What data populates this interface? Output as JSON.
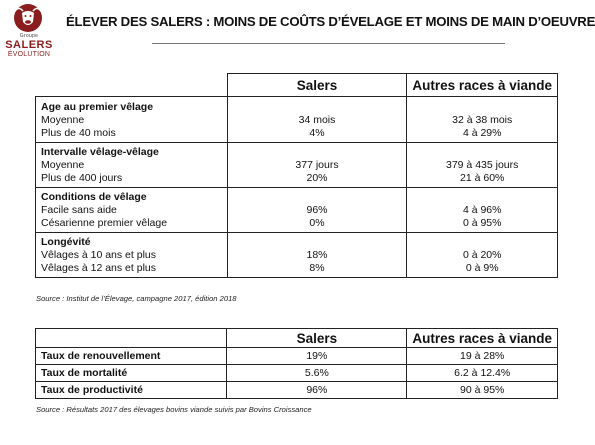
{
  "logo": {
    "top_text": "Groupe",
    "brand": "SALERS",
    "sub": "ÉVOLUTION"
  },
  "title": "ÉLEVER DES SALERS : MOINS DE COÛTS D’ÉVELAGE ET MOINS DE MAIN D’OEUVRE",
  "table1": {
    "headers": [
      "",
      "Salers",
      "Autres races à viande"
    ],
    "groups": [
      {
        "label": "Age au premier vêlage",
        "rows": [
          {
            "label": "Moyenne",
            "salers": "34 mois",
            "autres": "32 à 38 mois"
          },
          {
            "label": "Plus de 40 mois",
            "salers": "4%",
            "autres": "4 à 29%"
          }
        ]
      },
      {
        "label": "Intervalle vêlage-vêlage",
        "rows": [
          {
            "label": "Moyenne",
            "salers": "377 jours",
            "autres": "379 à 435 jours"
          },
          {
            "label": "Plus de 400 jours",
            "salers": "20%",
            "autres": "21 à 60%"
          }
        ]
      },
      {
        "label": "Conditions de vêlage",
        "rows": [
          {
            "label": "Facile sans aide",
            "salers": "96%",
            "autres": "4 à 96%"
          },
          {
            "label": "Césarienne premier vêlage",
            "salers": "0%",
            "autres": "0 à 95%"
          }
        ]
      },
      {
        "label": "Longévité",
        "rows": [
          {
            "label": "Vêlages à 10 ans et plus",
            "salers": "18%",
            "autres": "0 à 20%"
          },
          {
            "label": "Vêlages à 12 ans et plus",
            "salers": "8%",
            "autres": "0 à 9%"
          }
        ]
      }
    ],
    "source": "Source : Institut de l’Élevage, campagne 2017, édition 2018"
  },
  "table2": {
    "headers": [
      "",
      "Salers",
      "Autres races à viande"
    ],
    "rows": [
      {
        "label": "Taux de renouvellement",
        "salers": "19%",
        "autres": "19 à 28%"
      },
      {
        "label": "Taux de mortalité",
        "salers": "5.6%",
        "autres": "6.2 à 12.4%"
      },
      {
        "label": "Taux de productivité",
        "salers": "96%",
        "autres": "90 à 95%"
      }
    ],
    "source": "Source : Résultats 2017 des élevages bovins viande suivis par Bovins Croissance"
  },
  "colors": {
    "brand": "#8a1d1d",
    "border": "#222222"
  }
}
